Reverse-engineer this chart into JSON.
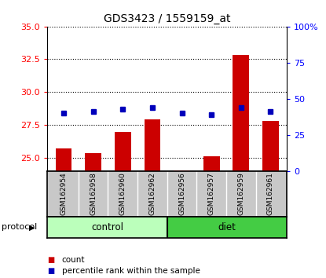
{
  "title": "GDS3423 / 1559159_at",
  "samples": [
    "GSM162954",
    "GSM162958",
    "GSM162960",
    "GSM162962",
    "GSM162956",
    "GSM162957",
    "GSM162959",
    "GSM162961"
  ],
  "counts": [
    25.7,
    25.35,
    27.0,
    27.9,
    24.07,
    25.1,
    32.8,
    27.8
  ],
  "percentile_ranks": [
    40,
    41,
    43,
    44,
    40,
    39,
    44,
    41
  ],
  "groups": [
    "control",
    "control",
    "control",
    "control",
    "diet",
    "diet",
    "diet",
    "diet"
  ],
  "ylim_left": [
    24.0,
    35.0
  ],
  "ylim_right": [
    0,
    100
  ],
  "yticks_left": [
    25.0,
    27.5,
    30.0,
    32.5,
    35.0
  ],
  "yticks_right": [
    0,
    25,
    50,
    75,
    100
  ],
  "ytick_labels_right": [
    "0",
    "25",
    "50",
    "75",
    "100%"
  ],
  "bar_color": "#cc0000",
  "dot_color": "#0000bb",
  "control_color_light": "#bbffbb",
  "diet_color": "#44cc44",
  "bg_color": "#c8c8c8",
  "protocol_label": "protocol",
  "control_label": "control",
  "diet_label": "diet",
  "legend_bar": "count",
  "legend_dot": "percentile rank within the sample",
  "base_value": 24.0,
  "n_control": 4,
  "n_diet": 4
}
